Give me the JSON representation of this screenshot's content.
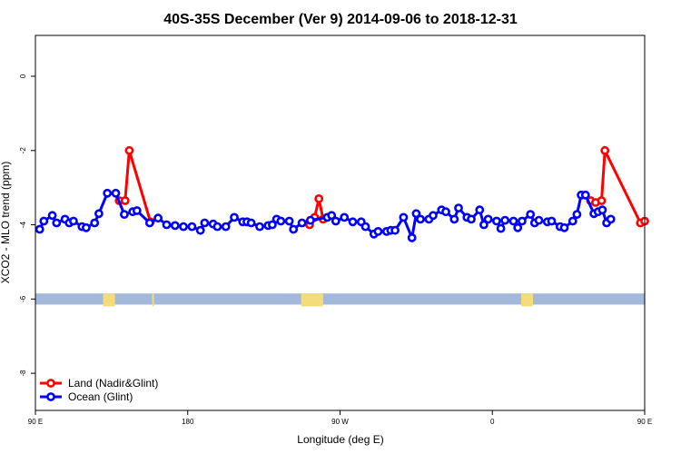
{
  "chart_data": {
    "type": "line",
    "title": "40S-35S December (Ver 9)   2014-09-06 to 2018-12-31",
    "xlabel": "Longitude (deg E)",
    "ylabel": "XCO2 - MLO trend (ppm)",
    "xlim": [
      90,
      450
    ],
    "ylim": [
      -9,
      1.1
    ],
    "x_ticks": [
      {
        "value": 90,
        "label": "90 E"
      },
      {
        "value": 180,
        "label": "180"
      },
      {
        "value": 270,
        "label": "90 W"
      },
      {
        "value": 360,
        "label": "0"
      },
      {
        "value": 450,
        "label": "90 E"
      },
      {
        "value": 540,
        "label": "180"
      }
    ],
    "y_ticks": [
      {
        "value": 0,
        "label": "0"
      },
      {
        "value": -2,
        "label": "-2"
      },
      {
        "value": -4,
        "label": "-4"
      },
      {
        "value": -6,
        "label": "-6"
      },
      {
        "value": -8,
        "label": "-8"
      }
    ],
    "grid": false,
    "legend_position": "bottom-left",
    "band": {
      "y_top": -5.85,
      "y_bottom": -6.15,
      "ocean_color": "#a3b9dc",
      "land_color": "#f5dc7a"
    },
    "land_patches_x": [
      [
        130,
        137
      ],
      [
        159,
        160
      ],
      [
        247,
        260
      ],
      [
        377,
        384
      ],
      [
        465,
        467
      ]
    ],
    "series": [
      {
        "name": "Land (Nadir&Glint)",
        "color": "#ff0000",
        "points": [
          [
            139.5,
            -3.35
          ],
          [
            143.0,
            -3.35
          ],
          [
            145.5,
            -2.0
          ],
          [
            158.0,
            -3.92
          ],
          [
            252.0,
            -4.0
          ],
          [
            255.0,
            -3.8
          ],
          [
            257.5,
            -3.3
          ],
          [
            260.0,
            -3.85
          ],
          [
            418.0,
            -3.35
          ],
          [
            421.0,
            -3.4
          ],
          [
            424.5,
            -3.35
          ],
          [
            426.5,
            -2.0
          ],
          [
            447.5,
            -3.95
          ],
          [
            450.0,
            -3.9
          ]
        ]
      },
      {
        "name": "Ocean (Glint)",
        "color": "#0000ff",
        "points": [
          [
            92.5,
            -4.12
          ],
          [
            95.0,
            -3.9
          ],
          [
            100.0,
            -3.75
          ],
          [
            102.5,
            -3.95
          ],
          [
            107.5,
            -3.85
          ],
          [
            110.0,
            -3.95
          ],
          [
            112.5,
            -3.9
          ],
          [
            117.5,
            -4.05
          ],
          [
            120.0,
            -4.08
          ],
          [
            125.0,
            -3.95
          ],
          [
            127.5,
            -3.7
          ],
          [
            132.5,
            -3.15
          ],
          [
            137.5,
            -3.15
          ],
          [
            142.5,
            -3.72
          ],
          [
            147.5,
            -3.65
          ],
          [
            150.0,
            -3.62
          ],
          [
            157.5,
            -3.95
          ],
          [
            162.5,
            -3.82
          ],
          [
            167.5,
            -4.0
          ],
          [
            172.5,
            -4.02
          ],
          [
            177.5,
            -4.05
          ],
          [
            182.5,
            -4.05
          ],
          [
            187.5,
            -4.15
          ],
          [
            190.0,
            -3.95
          ],
          [
            195.0,
            -3.98
          ],
          [
            197.5,
            -4.05
          ],
          [
            202.5,
            -4.05
          ],
          [
            207.5,
            -3.8
          ],
          [
            212.5,
            -3.92
          ],
          [
            215.0,
            -3.92
          ],
          [
            217.5,
            -3.95
          ],
          [
            222.5,
            -4.05
          ],
          [
            227.5,
            -4.02
          ],
          [
            230.0,
            -4.0
          ],
          [
            232.5,
            -3.85
          ],
          [
            235.0,
            -3.9
          ],
          [
            240.0,
            -3.9
          ],
          [
            242.5,
            -4.12
          ],
          [
            247.5,
            -3.95
          ],
          [
            252.5,
            -3.88
          ],
          [
            262.5,
            -3.8
          ],
          [
            265.0,
            -3.75
          ],
          [
            267.5,
            -3.9
          ],
          [
            272.5,
            -3.8
          ],
          [
            277.5,
            -3.92
          ],
          [
            282.5,
            -3.92
          ],
          [
            285.0,
            -4.05
          ],
          [
            290.0,
            -4.25
          ],
          [
            292.5,
            -4.18
          ],
          [
            297.5,
            -4.18
          ],
          [
            300.0,
            -4.15
          ],
          [
            302.5,
            -4.15
          ],
          [
            307.5,
            -3.8
          ],
          [
            312.5,
            -4.35
          ],
          [
            315.0,
            -3.7
          ],
          [
            317.5,
            -3.85
          ],
          [
            322.5,
            -3.85
          ],
          [
            325.0,
            -3.75
          ],
          [
            330.0,
            -3.6
          ],
          [
            332.5,
            -3.65
          ],
          [
            337.5,
            -3.85
          ],
          [
            340.0,
            -3.55
          ],
          [
            345.0,
            -3.8
          ],
          [
            347.5,
            -3.85
          ],
          [
            352.5,
            -3.6
          ],
          [
            355.0,
            -4.0
          ],
          [
            357.5,
            -3.85
          ],
          [
            362.5,
            -3.9
          ],
          [
            365.0,
            -4.1
          ],
          [
            367.5,
            -3.88
          ],
          [
            372.5,
            -3.9
          ],
          [
            375.0,
            -4.08
          ],
          [
            377.5,
            -3.9
          ],
          [
            382.5,
            -3.72
          ],
          [
            385.0,
            -3.95
          ],
          [
            387.5,
            -3.88
          ],
          [
            392.5,
            -3.92
          ],
          [
            395.0,
            -3.9
          ],
          [
            400.0,
            -4.05
          ],
          [
            402.5,
            -4.08
          ],
          [
            407.5,
            -3.9
          ],
          [
            410.0,
            -3.72
          ],
          [
            412.5,
            -3.2
          ],
          [
            415.0,
            -3.2
          ],
          [
            420.0,
            -3.7
          ],
          [
            422.5,
            -3.65
          ],
          [
            425.0,
            -3.6
          ],
          [
            427.5,
            -3.95
          ],
          [
            430.0,
            -3.85
          ]
        ]
      }
    ]
  }
}
